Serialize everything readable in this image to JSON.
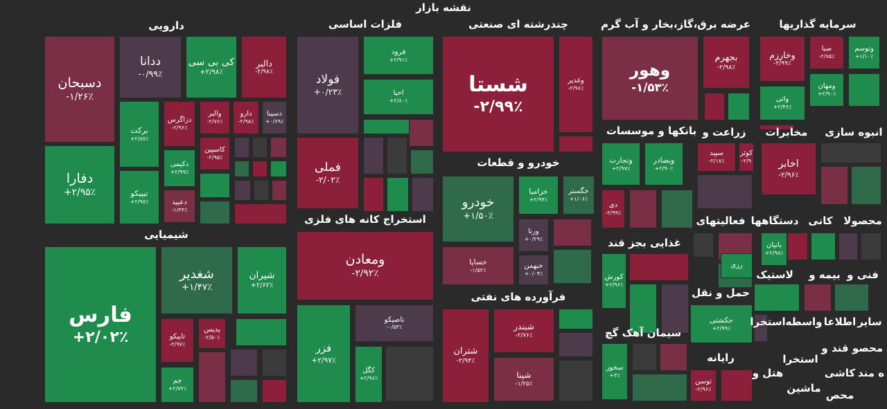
{
  "title": "نقشه بازار",
  "sectors": [
    {
      "name": "دارویی",
      "tiles": [
        {
          "symbol": "دسبحان",
          "change": "-۱/۲۶٪",
          "color": "#7a2f47"
        },
        {
          "symbol": "ددانا",
          "change": "-۰/۹۹٪",
          "color": "#4d3a4a"
        },
        {
          "symbol": "کی بی سی",
          "change": "+۲/۹۸٪",
          "color": "#1f8c4d"
        },
        {
          "symbol": "دالبر",
          "change": "-۲/۹۸٪",
          "color": "#8c1f3a"
        },
        {
          "symbol": "برکت",
          "change": "+۲/۸۷٪",
          "color": "#1f8c4d"
        },
        {
          "symbol": "دزاگرس",
          "change": "-۲/۹۶٪",
          "color": "#8c1f3a"
        },
        {
          "symbol": "والبر",
          "change": "-۲/۷۶٪",
          "color": "#8c1f3a"
        },
        {
          "symbol": "دارو",
          "change": "-۲/۹۸٪",
          "color": "#8c1f3a"
        },
        {
          "symbol": "دسینا",
          "change": "+۰/۶۹٪",
          "color": "#4d3a4a"
        },
        {
          "symbol": "کاسپین",
          "change": "-۲/۹۵٪",
          "color": "#8c1f3a"
        },
        {
          "symbol": "دکیمی",
          "change": "+۲/۹۹٪",
          "color": "#1f8c4d"
        },
        {
          "symbol": "دفارا",
          "change": "+۲/۹۵٪",
          "color": "#1f8c4d"
        },
        {
          "symbol": "تیپیکو",
          "change": "+۲/۹۷٪",
          "color": "#1f8c4d"
        },
        {
          "symbol": "دعبید",
          "change": "-۱/۳۳٪",
          "color": "#7a2f47"
        }
      ]
    },
    {
      "name": "شیمیایی",
      "tiles": [
        {
          "symbol": "فارس",
          "change": "+۲/۰۲٪",
          "color": "#1f8c4d"
        },
        {
          "symbol": "شغدیر",
          "change": "+۱/۴۷٪",
          "color": "#2f6a4b"
        },
        {
          "symbol": "شیران",
          "change": "+۲/۶۲٪",
          "color": "#1f8c4d"
        },
        {
          "symbol": "تاپیکو",
          "change": "-۲/۹۷٪",
          "color": "#8c1f3a"
        },
        {
          "symbol": "پدیس",
          "change": "-۲/۵۰٪",
          "color": "#8c1f3a"
        },
        {
          "symbol": "جم",
          "change": "+۲/۷۲٪",
          "color": "#1f8c4d"
        }
      ]
    },
    {
      "name": "فلزات اساسی",
      "tiles": [
        {
          "symbol": "فولاد",
          "change": "+۰/۲۳٪",
          "color": "#4d3a4a"
        },
        {
          "symbol": "فرود",
          "change": "+۲/۹۱٪",
          "color": "#1f8c4d"
        },
        {
          "symbol": "احیا",
          "change": "+۲/۸۰٪",
          "color": "#1f8c4d"
        },
        {
          "symbol": "فملی",
          "change": "-۲/۰۲٪",
          "color": "#8c1f3a"
        }
      ]
    },
    {
      "name": "استخراج کانه های فلزی",
      "tiles": [
        {
          "symbol": "ومعادن",
          "change": "-۲/۹۲٪",
          "color": "#8c1f3a"
        },
        {
          "symbol": "تاصیکو",
          "change": "-۰/۵۳٪",
          "color": "#4d3a4a"
        },
        {
          "symbol": "فزر",
          "change": "+۲/۹۷٪",
          "color": "#1f8c4d"
        },
        {
          "symbol": "کگل",
          "change": "+۲/۹۶٪",
          "color": "#1f8c4d"
        }
      ]
    },
    {
      "name": "چندرشته ای صنعتی",
      "tiles": [
        {
          "symbol": "شستا",
          "change": "-۲/۹۹٪",
          "color": "#8c1f3a"
        },
        {
          "symbol": "وغدیر",
          "change": "-۲/۹۶٪",
          "color": "#8c1f3a"
        }
      ]
    },
    {
      "name": "خودرو و قطعات",
      "tiles": [
        {
          "symbol": "خودرو",
          "change": "+۱/۵۰٪",
          "color": "#2f6a4b"
        },
        {
          "symbol": "خزامیا",
          "change": "+۲/۹۴٪",
          "color": "#1f8c4d"
        },
        {
          "symbol": "خگستر",
          "change": "+۱/۰۶٪",
          "color": "#2f6a4b"
        },
        {
          "symbol": "خساپا",
          "change": "-۱/۵۲٪",
          "color": "#7a2f47"
        },
        {
          "symbol": "ورنا",
          "change": "+۰/۲۹٪",
          "color": "#4d3a4a"
        },
        {
          "symbol": "خبهمن",
          "change": "+۰/۰۴٪",
          "color": "#4d3a4a"
        }
      ]
    },
    {
      "name": "فرآورده های نفتی",
      "tiles": [
        {
          "symbol": "شتران",
          "change": "-۲/۹۴٪",
          "color": "#8c1f3a"
        },
        {
          "symbol": "شبندر",
          "change": "-۲/۷۶٪",
          "color": "#8c1f3a"
        },
        {
          "symbol": "شپنا",
          "change": "-۱/۲۵٪",
          "color": "#7a2f47"
        }
      ]
    },
    {
      "name": "عرضه برق،گاز،بخار و آب گرم",
      "tiles": [
        {
          "symbol": "وهور",
          "change": "-۱/۵۳٪",
          "color": "#7a2f47"
        },
        {
          "symbol": "بجهرم",
          "change": "-۲/۹۸٪",
          "color": "#8c1f3a"
        }
      ]
    },
    {
      "name": "بانکها و موسسات",
      "tiles": [
        {
          "symbol": "وتجارت",
          "change": "+۲/۹۷٪",
          "color": "#1f8c4d"
        },
        {
          "symbol": "وبصادر",
          "change": "+۲/۹۰٪",
          "color": "#1f8c4d"
        },
        {
          "symbol": "دی",
          "change": "-۲/۹۹٪",
          "color": "#8c1f3a"
        }
      ]
    },
    {
      "name": "زراعت و",
      "tiles": [
        {
          "symbol": "سپید",
          "change": "-۲/۱۸٪",
          "color": "#8c1f3a"
        },
        {
          "symbol": "کوثر",
          "change": "-۲/۹",
          "color": "#8c1f3a"
        }
      ]
    },
    {
      "name": "غذایی بجز قند",
      "tiles": [
        {
          "symbol": "کورش",
          "change": "+۲/۹۶٪",
          "color": "#1f8c4d"
        }
      ]
    },
    {
      "name": "فعالیتهای",
      "tiles": [
        {
          "symbol": "رزی",
          "color": "#1f8c4d"
        }
      ]
    },
    {
      "name": "حمل و نقل",
      "tiles": [
        {
          "symbol": "حکشتی",
          "change": "+۲/۹۹٪",
          "color": "#1f8c4d"
        }
      ]
    },
    {
      "name": "سیمان آهک گچ",
      "tiles": [
        {
          "symbol": "سخوز",
          "change": "+۳٪",
          "color": "#1f8c4d"
        }
      ]
    },
    {
      "name": "رایانه",
      "tiles": [
        {
          "symbol": "توسن",
          "change": "-۲/۹۶٪",
          "color": "#8c1f3a"
        }
      ]
    },
    {
      "name": "سرمایه گذاریها",
      "tiles": [
        {
          "symbol": "وخارزم",
          "change": "-۲/۹۹٪",
          "color": "#8c1f3a"
        },
        {
          "symbol": "صبا",
          "change": "-۲/۷۵٪",
          "color": "#8c1f3a"
        },
        {
          "symbol": "وتوسم",
          "change": "+۱/۱۰٪",
          "color": "#1f8c4d"
        },
        {
          "symbol": "واتی",
          "change": "+۲/۴۶٪",
          "color": "#1f8c4d"
        },
        {
          "symbol": "ومهان",
          "change": "+۲/۹۰٪",
          "color": "#1f8c4d"
        }
      ]
    },
    {
      "name": "مخابرات",
      "tiles": [
        {
          "symbol": "اخابر",
          "change": "-۲/۹۶٪",
          "color": "#8c1f3a"
        }
      ]
    },
    {
      "name": "دستگاهها",
      "tiles": [
        {
          "symbol": "بانیان",
          "change": "+۲/۹۸٪",
          "color": "#1f8c4d"
        }
      ]
    }
  ],
  "other_sectors": [
    "انبوه سازی",
    "کانی",
    "محصولا",
    "لاستیک",
    "بیمه و",
    "فنی و",
    "استخرا",
    "واسطه",
    "اطلاعا",
    "سایر",
    "محصو",
    "قند و",
    "استخرا",
    "هتل و",
    "کاشی",
    "ه مند",
    "ماشین",
    "محص"
  ]
}
